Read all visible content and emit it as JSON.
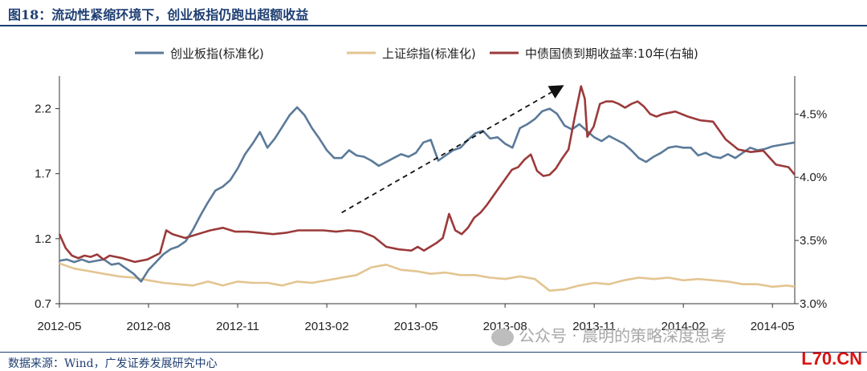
{
  "header": {
    "title": "图18：流动性紧缩环境下，创业板指仍跑出超额收益"
  },
  "footer": {
    "source": "数据来源：Wind，广发证券发展研究中心",
    "watermark": "公众号 · 晨明的策略深度思考",
    "corner_mark": "L70.CN"
  },
  "colors": {
    "chinext": "#5b7a99",
    "shanghai": "#e3c591",
    "bond": "#9b3a3a",
    "title": "#1f3f73"
  },
  "chart_data": {
    "type": "line",
    "title": "",
    "xlabel": "",
    "ylabel": "",
    "ylim": [
      0.7,
      2.45
    ],
    "y2lim": [
      3.0,
      4.8
    ],
    "y_ticks": [
      "0.7",
      "1.2",
      "1.7",
      "2.2"
    ],
    "y2_ticks": [
      "3.0%",
      "3.5%",
      "4.0%",
      "4.5%"
    ],
    "x_ticks": [
      "2012-05",
      "2012-08",
      "2012-11",
      "2013-02",
      "2013-05",
      "2013-08",
      "2013-11",
      "2014-02",
      "2014-05"
    ],
    "x_range_months": [
      0,
      8.25
    ],
    "legend_position": "top-center",
    "grid": false,
    "series": [
      {
        "name": "创业板指(标准化)",
        "axis": "left",
        "values": [
          [
            0,
            1.03
          ],
          [
            0.25,
            1.04
          ],
          [
            0.5,
            1.02
          ],
          [
            0.75,
            1.04
          ],
          [
            1.0,
            1.02
          ],
          [
            1.25,
            1.03
          ],
          [
            1.5,
            1.04
          ],
          [
            1.75,
            1.0
          ],
          [
            2.0,
            1.01
          ],
          [
            2.25,
            0.97
          ],
          [
            2.5,
            0.93
          ],
          [
            2.75,
            0.87
          ],
          [
            3.0,
            0.96
          ],
          [
            3.25,
            1.02
          ],
          [
            3.5,
            1.08
          ],
          [
            3.75,
            1.12
          ],
          [
            4.0,
            1.14
          ],
          [
            4.25,
            1.18
          ],
          [
            4.5,
            1.27
          ],
          [
            4.75,
            1.38
          ],
          [
            5.0,
            1.48
          ],
          [
            5.25,
            1.57
          ],
          [
            5.5,
            1.6
          ],
          [
            5.75,
            1.65
          ],
          [
            6.0,
            1.74
          ],
          [
            6.25,
            1.85
          ],
          [
            6.5,
            1.93
          ],
          [
            6.75,
            2.02
          ],
          [
            7.0,
            1.9
          ],
          [
            7.25,
            1.97
          ],
          [
            7.5,
            2.06
          ],
          [
            7.75,
            2.15
          ],
          [
            8.0,
            2.21
          ],
          [
            8.25,
            2.15
          ],
          [
            8.5,
            2.05
          ],
          [
            8.75,
            1.97
          ],
          [
            9.0,
            1.88
          ],
          [
            9.25,
            1.82
          ],
          [
            9.5,
            1.82
          ],
          [
            9.75,
            1.88
          ],
          [
            10.0,
            1.84
          ],
          [
            10.25,
            1.83
          ],
          [
            10.5,
            1.8
          ],
          [
            10.75,
            1.76
          ],
          [
            11.0,
            1.79
          ],
          [
            11.25,
            1.82
          ],
          [
            11.5,
            1.85
          ],
          [
            11.75,
            1.83
          ],
          [
            12.0,
            1.86
          ],
          [
            12.25,
            1.94
          ],
          [
            12.5,
            1.96
          ],
          [
            12.75,
            1.8
          ],
          [
            13.0,
            1.84
          ],
          [
            13.25,
            1.88
          ],
          [
            13.5,
            1.9
          ],
          [
            13.75,
            1.96
          ],
          [
            14.0,
            2.01
          ],
          [
            14.25,
            2.03
          ],
          [
            14.5,
            1.97
          ],
          [
            14.75,
            1.98
          ],
          [
            15.0,
            1.93
          ],
          [
            15.25,
            1.9
          ],
          [
            15.5,
            2.05
          ],
          [
            15.75,
            2.08
          ],
          [
            16.0,
            2.12
          ],
          [
            16.25,
            2.18
          ],
          [
            16.5,
            2.2
          ],
          [
            16.75,
            2.16
          ],
          [
            17.0,
            2.07
          ],
          [
            17.25,
            2.04
          ],
          [
            17.5,
            2.08
          ],
          [
            17.75,
            2.03
          ],
          [
            18.0,
            1.98
          ],
          [
            18.25,
            1.95
          ],
          [
            18.5,
            1.99
          ],
          [
            18.75,
            1.96
          ],
          [
            19.0,
            1.93
          ],
          [
            19.25,
            1.88
          ],
          [
            19.5,
            1.82
          ],
          [
            19.75,
            1.79
          ],
          [
            20.0,
            1.83
          ],
          [
            20.25,
            1.86
          ],
          [
            20.5,
            1.9
          ],
          [
            20.75,
            1.91
          ],
          [
            21.0,
            1.9
          ],
          [
            21.25,
            1.9
          ],
          [
            21.5,
            1.84
          ],
          [
            21.75,
            1.86
          ],
          [
            22.0,
            1.83
          ],
          [
            22.25,
            1.82
          ],
          [
            22.5,
            1.85
          ],
          [
            22.75,
            1.82
          ],
          [
            23.0,
            1.86
          ],
          [
            23.25,
            1.9
          ],
          [
            23.5,
            1.88
          ],
          [
            23.75,
            1.89
          ],
          [
            24.0,
            1.91
          ],
          [
            24.25,
            1.92
          ],
          [
            24.5,
            1.93
          ],
          [
            24.75,
            1.94
          ]
        ]
      },
      {
        "name": "上证综指(标准化)",
        "axis": "left",
        "values": [
          [
            0,
            1.01
          ],
          [
            0.5,
            0.97
          ],
          [
            1.0,
            0.95
          ],
          [
            1.5,
            0.93
          ],
          [
            2.0,
            0.91
          ],
          [
            2.5,
            0.9
          ],
          [
            3.0,
            0.88
          ],
          [
            3.5,
            0.86
          ],
          [
            4.0,
            0.85
          ],
          [
            4.5,
            0.84
          ],
          [
            5.0,
            0.87
          ],
          [
            5.5,
            0.84
          ],
          [
            6.0,
            0.87
          ],
          [
            6.5,
            0.86
          ],
          [
            7.0,
            0.86
          ],
          [
            7.5,
            0.84
          ],
          [
            8.0,
            0.87
          ],
          [
            8.5,
            0.86
          ],
          [
            9.0,
            0.88
          ],
          [
            9.5,
            0.9
          ],
          [
            10.0,
            0.92
          ],
          [
            10.5,
            0.98
          ],
          [
            11.0,
            1.0
          ],
          [
            11.5,
            0.96
          ],
          [
            12.0,
            0.95
          ],
          [
            12.5,
            0.93
          ],
          [
            13.0,
            0.94
          ],
          [
            13.5,
            0.92
          ],
          [
            14.0,
            0.92
          ],
          [
            14.5,
            0.9
          ],
          [
            15.0,
            0.89
          ],
          [
            15.5,
            0.91
          ],
          [
            16.0,
            0.89
          ],
          [
            16.5,
            0.8
          ],
          [
            17.0,
            0.81
          ],
          [
            17.5,
            0.84
          ],
          [
            18.0,
            0.86
          ],
          [
            18.5,
            0.85
          ],
          [
            19.0,
            0.88
          ],
          [
            19.5,
            0.9
          ],
          [
            20.0,
            0.89
          ],
          [
            20.5,
            0.9
          ],
          [
            21.0,
            0.88
          ],
          [
            21.5,
            0.89
          ],
          [
            22.0,
            0.88
          ],
          [
            22.5,
            0.87
          ],
          [
            23.0,
            0.85
          ],
          [
            23.5,
            0.85
          ],
          [
            24.0,
            0.83
          ],
          [
            24.5,
            0.84
          ],
          [
            24.75,
            0.83
          ]
        ]
      },
      {
        "name": "中债国债到期收益率:10年(右轴)",
        "axis": "right",
        "values": [
          [
            0,
            3.55
          ],
          [
            0.25,
            3.44
          ],
          [
            0.5,
            3.38
          ],
          [
            0.75,
            3.36
          ],
          [
            1.0,
            3.38
          ],
          [
            1.25,
            3.37
          ],
          [
            1.5,
            3.39
          ],
          [
            1.75,
            3.35
          ],
          [
            2.0,
            3.38
          ],
          [
            2.5,
            3.36
          ],
          [
            3.0,
            3.33
          ],
          [
            3.5,
            3.35
          ],
          [
            4.0,
            3.4
          ],
          [
            4.25,
            3.58
          ],
          [
            4.5,
            3.55
          ],
          [
            5.0,
            3.52
          ],
          [
            5.5,
            3.55
          ],
          [
            6.0,
            3.58
          ],
          [
            6.5,
            3.6
          ],
          [
            7.0,
            3.57
          ],
          [
            7.5,
            3.57
          ],
          [
            8.0,
            3.56
          ],
          [
            8.5,
            3.55
          ],
          [
            9.0,
            3.56
          ],
          [
            9.5,
            3.58
          ],
          [
            10.0,
            3.58
          ],
          [
            10.5,
            3.58
          ],
          [
            11.0,
            3.57
          ],
          [
            11.5,
            3.58
          ],
          [
            12.0,
            3.57
          ],
          [
            12.5,
            3.53
          ],
          [
            13.0,
            3.45
          ],
          [
            13.5,
            3.43
          ],
          [
            14.0,
            3.42
          ],
          [
            14.25,
            3.45
          ],
          [
            14.5,
            3.42
          ],
          [
            14.75,
            3.45
          ],
          [
            15.0,
            3.48
          ],
          [
            15.25,
            3.52
          ],
          [
            15.5,
            3.71
          ],
          [
            15.75,
            3.58
          ],
          [
            16.0,
            3.55
          ],
          [
            16.25,
            3.6
          ],
          [
            16.5,
            3.68
          ],
          [
            16.75,
            3.72
          ],
          [
            17.0,
            3.78
          ],
          [
            17.5,
            3.92
          ],
          [
            18.0,
            4.06
          ],
          [
            18.25,
            4.08
          ],
          [
            18.5,
            4.14
          ],
          [
            18.75,
            4.18
          ],
          [
            19.0,
            4.05
          ],
          [
            19.25,
            4.01
          ],
          [
            19.5,
            4.02
          ],
          [
            19.75,
            4.07
          ],
          [
            20.0,
            4.15
          ],
          [
            20.25,
            4.22
          ],
          [
            20.5,
            4.48
          ],
          [
            20.75,
            4.72
          ],
          [
            20.9,
            4.62
          ],
          [
            21.0,
            4.32
          ],
          [
            21.25,
            4.4
          ],
          [
            21.5,
            4.58
          ],
          [
            21.75,
            4.6
          ],
          [
            22.0,
            4.6
          ],
          [
            22.25,
            4.58
          ],
          [
            22.5,
            4.55
          ],
          [
            22.75,
            4.58
          ],
          [
            23.0,
            4.6
          ],
          [
            23.25,
            4.56
          ],
          [
            23.5,
            4.5
          ],
          [
            23.75,
            4.48
          ],
          [
            24.0,
            4.5
          ],
          [
            24.5,
            4.52
          ],
          [
            25.0,
            4.48
          ],
          [
            25.5,
            4.45
          ],
          [
            26.0,
            4.44
          ],
          [
            26.5,
            4.3
          ],
          [
            27.0,
            4.22
          ],
          [
            27.5,
            4.2
          ],
          [
            28.0,
            4.21
          ],
          [
            28.5,
            4.1
          ],
          [
            29.0,
            4.08
          ],
          [
            29.25,
            4.02
          ]
        ]
      }
    ],
    "annotations": [
      {
        "type": "arrow",
        "style": "dashed",
        "from": [
          9.5,
          1.4
        ],
        "to": [
          16.9,
          2.37
        ]
      }
    ]
  }
}
